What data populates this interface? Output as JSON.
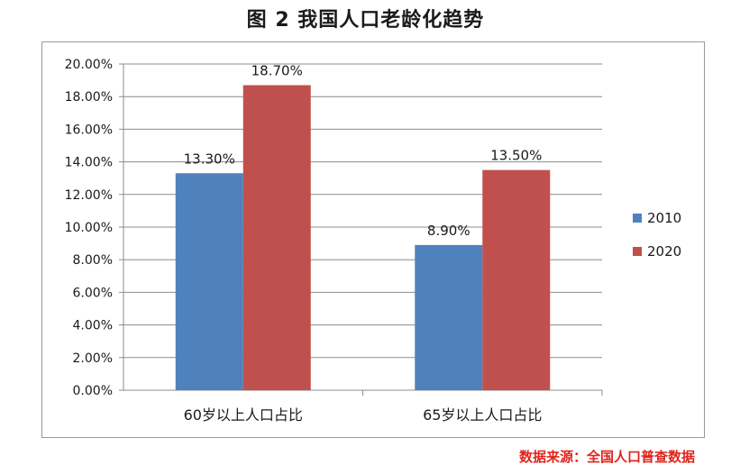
{
  "title": "图 2  我国人口老龄化趋势",
  "source": "数据来源：全国人口普查数据",
  "colors": {
    "s2010": "#4f81bd",
    "s2020": "#c0504d",
    "source": "#e2231a",
    "grid": "#8c8c8c"
  },
  "chart_data": {
    "type": "bar",
    "categories": [
      "60岁以上人口占比",
      "65岁以上人口占比"
    ],
    "series": [
      {
        "name": "2010",
        "values": [
          13.3,
          8.9
        ],
        "labels": [
          "13.30%",
          "8.90%"
        ]
      },
      {
        "name": "2020",
        "values": [
          18.7,
          13.5
        ],
        "labels": [
          "18.70%",
          "13.50%"
        ]
      }
    ],
    "ylim": [
      0,
      20
    ],
    "yticks": [
      "0.00%",
      "2.00%",
      "4.00%",
      "6.00%",
      "8.00%",
      "10.00%",
      "12.00%",
      "14.00%",
      "16.00%",
      "18.00%",
      "20.00%"
    ],
    "grid": true,
    "legend": "right"
  }
}
